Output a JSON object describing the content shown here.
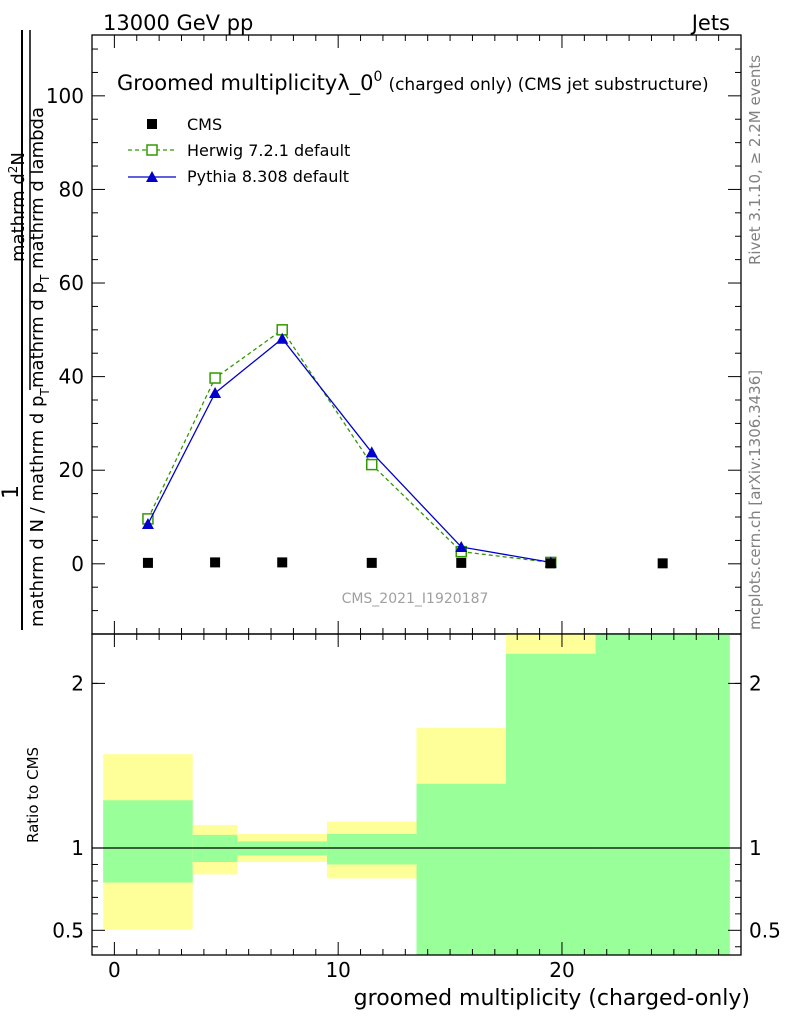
{
  "header": {
    "energy": "13000 GeV pp",
    "category": "Jets"
  },
  "title": {
    "main": "Groomed multiplicity",
    "lambda": "λ_0",
    "sup": "0",
    "note": "(charged only) (CMS jet substructure)"
  },
  "side_labels": {
    "rivet": "Rivet 3.1.10, ≥ 2.2M events",
    "site": "mcplots.cern.ch [arXiv:1306.3436]"
  },
  "watermark": "CMS_2021_I1920187",
  "ylabel": {
    "numerator": "1",
    "denominator": "mathrm d N / mathrm d p",
    "denominator_sub": "T",
    "frac2_numerator": "mathrm d",
    "frac2_numerator_sup": "2",
    "frac2_numerator_tail": "N",
    "frac2_denominator": "mathrm d p",
    "frac2_denominator_sub": "T",
    "frac2_denominator_tail": " mathrm d lambda"
  },
  "ratio_ylabel": "Ratio to CMS",
  "xlabel": "groomed multiplicity (charged-only)",
  "legend": [
    {
      "label": "CMS",
      "color": "#000000",
      "marker": "filled-square"
    },
    {
      "label": "Herwig 7.2.1 default",
      "color": "#339900",
      "marker": "open-square"
    },
    {
      "label": "Pythia 8.308 default",
      "color": "#0000cc",
      "marker": "filled-triangle"
    }
  ],
  "chart_data": {
    "type": "line",
    "title": "Groomed multiplicity λ_0^0 (charged only) (CMS jet substructure)",
    "xlabel": "groomed multiplicity (charged-only)",
    "ylabel": "1/(dN/dpT) d²N/(dpT dλ)",
    "xlim": [
      -1,
      28
    ],
    "ylim": [
      -15,
      113
    ],
    "x_ticks": [
      0,
      10,
      20
    ],
    "y_ticks": [
      0,
      20,
      40,
      60,
      80,
      100
    ],
    "series": [
      {
        "name": "CMS",
        "x": [
          1.5,
          4.5,
          7.5,
          11.5,
          15.5,
          19.5,
          24.5
        ],
        "values": [
          0.2,
          0.3,
          0.3,
          0.2,
          0.2,
          0.1,
          0.1
        ]
      },
      {
        "name": "Herwig 7.2.1 default",
        "x": [
          1.5,
          4.5,
          7.5,
          11.5,
          15.5,
          19.5
        ],
        "values": [
          9.6,
          39.7,
          50.0,
          21.2,
          2.6,
          0.3
        ]
      },
      {
        "name": "Pythia 8.308 default",
        "x": [
          1.5,
          4.5,
          7.5,
          11.5,
          15.5,
          19.5
        ],
        "values": [
          8.5,
          36.5,
          48.1,
          23.8,
          3.6,
          0.3
        ]
      }
    ],
    "ratio": {
      "ylabel": "Ratio to CMS",
      "ylim": [
        0.35,
        2.3
      ],
      "y_ticks": [
        0.5,
        1,
        2
      ],
      "y_tick_labels": [
        "0.5",
        "1",
        "2"
      ],
      "bands": [
        {
          "x_lo": -0.5,
          "x_hi": 3.5,
          "stat_lo": 0.79,
          "stat_hi": 1.29,
          "syst_lo": 0.505,
          "syst_hi": 1.57
        },
        {
          "x_lo": 3.5,
          "x_hi": 5.5,
          "stat_lo": 0.915,
          "stat_hi": 1.08,
          "syst_lo": 0.84,
          "syst_hi": 1.14
        },
        {
          "x_lo": 5.5,
          "x_hi": 9.5,
          "stat_lo": 0.955,
          "stat_hi": 1.04,
          "syst_lo": 0.915,
          "syst_hi": 1.085
        },
        {
          "x_lo": 9.5,
          "x_hi": 13.5,
          "stat_lo": 0.9,
          "stat_hi": 1.085,
          "syst_lo": 0.815,
          "syst_hi": 1.16
        },
        {
          "x_lo": 13.5,
          "x_hi": 17.5,
          "stat_lo": 0.35,
          "stat_hi": 1.39,
          "syst_lo": 0.35,
          "syst_hi": 1.73
        },
        {
          "x_lo": 17.5,
          "x_hi": 21.5,
          "stat_lo": 0.35,
          "stat_hi": 2.18,
          "syst_lo": 0.35,
          "syst_hi": 2.3
        },
        {
          "x_lo": 21.5,
          "x_hi": 27.5,
          "stat_lo": 0.35,
          "stat_hi": 2.3,
          "syst_lo": 0.35,
          "syst_hi": 2.3
        }
      ]
    }
  }
}
